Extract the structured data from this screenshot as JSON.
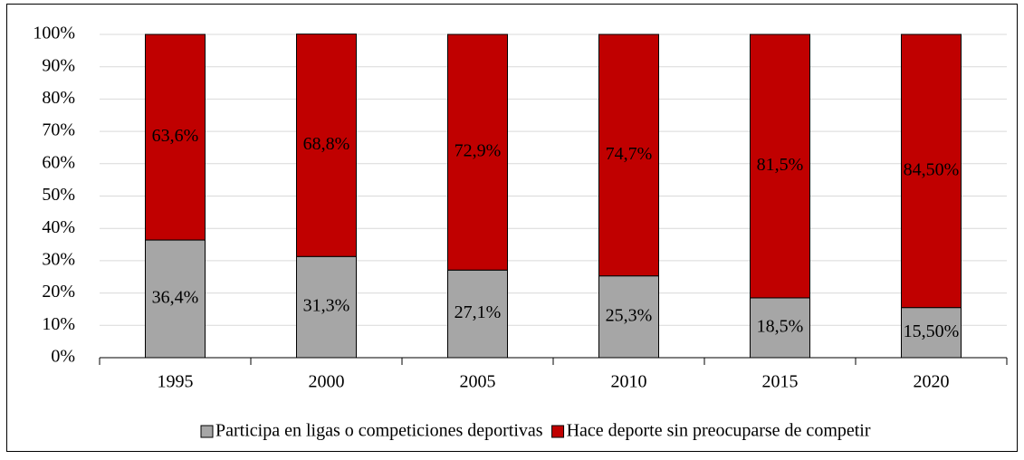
{
  "chart_data": {
    "type": "stacked_bar",
    "categories": [
      "1995",
      "2000",
      "2005",
      "2010",
      "2015",
      "2020"
    ],
    "series": [
      {
        "name": "Participa en ligas o competiciones deportivas",
        "color": "#a6a6a6",
        "values": [
          36.4,
          31.3,
          27.1,
          25.3,
          18.5,
          15.5
        ],
        "value_labels": [
          "36,4%",
          "31,3%",
          "27,1%",
          "25,3%",
          "18,5%",
          "15,50%"
        ]
      },
      {
        "name": "Hace deporte sin preocuparse de competir",
        "color": "#c00000",
        "values": [
          63.6,
          68.8,
          72.9,
          74.7,
          81.5,
          84.5
        ],
        "value_labels": [
          "63,6%",
          "68,8%",
          "72,9%",
          "74,7%",
          "81,5%",
          "84,50%"
        ]
      }
    ],
    "ylim": [
      0,
      100
    ],
    "yticks": [
      {
        "value": 0,
        "label": "0%"
      },
      {
        "value": 10,
        "label": "10%"
      },
      {
        "value": 20,
        "label": "20%"
      },
      {
        "value": 30,
        "label": "30%"
      },
      {
        "value": 40,
        "label": "40%"
      },
      {
        "value": 50,
        "label": "50%"
      },
      {
        "value": 60,
        "label": "60%"
      },
      {
        "value": 70,
        "label": "70%"
      },
      {
        "value": 80,
        "label": "80%"
      },
      {
        "value": 90,
        "label": "90%"
      },
      {
        "value": 100,
        "label": "100%"
      }
    ],
    "grid": true,
    "legend": "bottom"
  }
}
